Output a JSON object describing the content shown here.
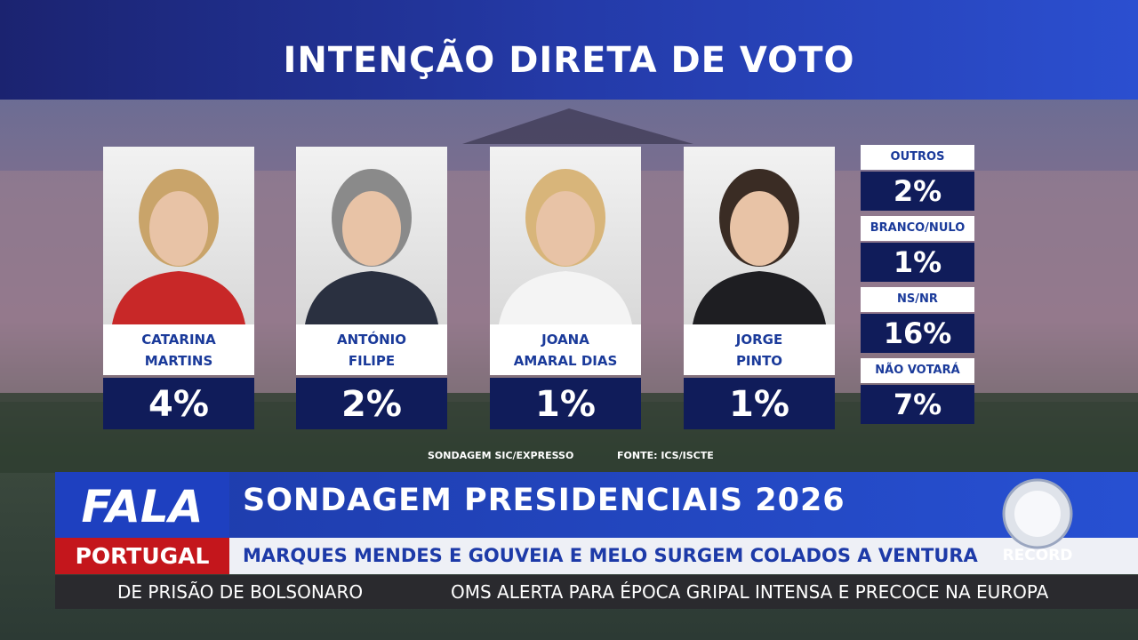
{
  "title": "INTENÇÃO DIRETA DE VOTO",
  "candidates": [
    {
      "name": [
        "CATARINA",
        "MARTINS"
      ],
      "percent": "4%"
    },
    {
      "name": [
        "ANTÓNIO",
        "FILIPE"
      ],
      "percent": "2%"
    },
    {
      "name": [
        "JOANA",
        "AMARAL DIAS"
      ],
      "percent": "1%"
    },
    {
      "name": [
        "JORGE",
        "PINTO"
      ],
      "percent": "1%"
    }
  ],
  "others": [
    {
      "label": "OUTROS",
      "percent": "2%"
    },
    {
      "label": "BRANCO/NULO",
      "percent": "1%"
    },
    {
      "label": "NS/NR",
      "percent": "16%"
    },
    {
      "label": "NÃO VOTARÁ",
      "percent": "7%"
    }
  ],
  "source": [
    "SONDAGEM SIC/EXPRESSO",
    "FONTE: ICS/ISCTE"
  ],
  "lower_third": {
    "brand": [
      "FALA",
      "PORTUGAL"
    ],
    "headline": "SONDAGEM PRESIDENCIAIS 2026",
    "subheadline": "MARQUES MENDES E GOUVEIA E MELO SURGEM COLADOS A VENTURA",
    "ticker": [
      "DE PRISÃO DE BOLSONARO",
      "OMS ALERTA PARA ÉPOCA GRIPAL INTENSA E PRECOCE NA EUROPA"
    ],
    "logo": "RECORD"
  }
}
